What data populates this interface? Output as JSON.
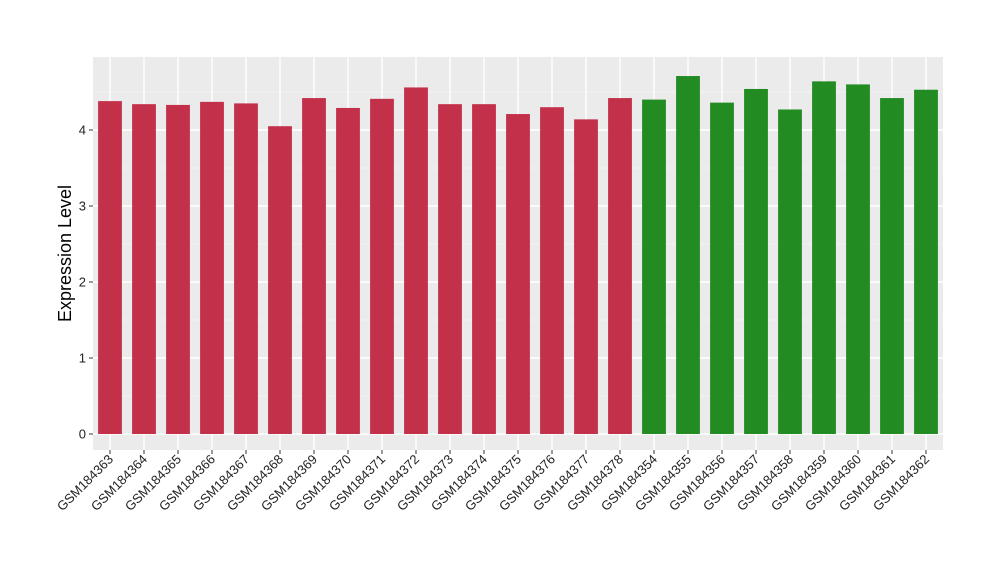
{
  "chart_data": {
    "type": "bar",
    "title": "",
    "xlabel": "",
    "ylabel": "Expression Level",
    "ylim": [
      0,
      4.97
    ],
    "yticks": [
      0,
      1,
      2,
      3,
      4
    ],
    "grid": true,
    "legend": "none",
    "categories": [
      "GSM184363",
      "GSM184364",
      "GSM184365",
      "GSM184366",
      "GSM184367",
      "GSM184368",
      "GSM184369",
      "GSM184370",
      "GSM184371",
      "GSM184372",
      "GSM184373",
      "GSM184374",
      "GSM184375",
      "GSM184376",
      "GSM184377",
      "GSM184378",
      "GSM184354",
      "GSM184355",
      "GSM184356",
      "GSM184357",
      "GSM184358",
      "GSM184359",
      "GSM184360",
      "GSM184361",
      "GSM184362"
    ],
    "values": [
      4.38,
      4.34,
      4.33,
      4.37,
      4.35,
      4.05,
      4.42,
      4.29,
      4.41,
      4.56,
      4.34,
      4.34,
      4.21,
      4.3,
      4.14,
      4.42,
      4.4,
      4.71,
      4.36,
      4.54,
      4.27,
      4.64,
      4.6,
      4.42,
      4.53
    ],
    "group_of_bar": [
      0,
      0,
      0,
      0,
      0,
      0,
      0,
      0,
      0,
      0,
      0,
      0,
      0,
      0,
      0,
      0,
      1,
      1,
      1,
      1,
      1,
      1,
      1,
      1,
      1
    ],
    "colors": {
      "group_0": "#c3304a",
      "group_1": "#228b22",
      "panel_bg": "#ebebeb",
      "grid_major": "#ffffff",
      "grid_minor": "#f5f5f5"
    }
  }
}
